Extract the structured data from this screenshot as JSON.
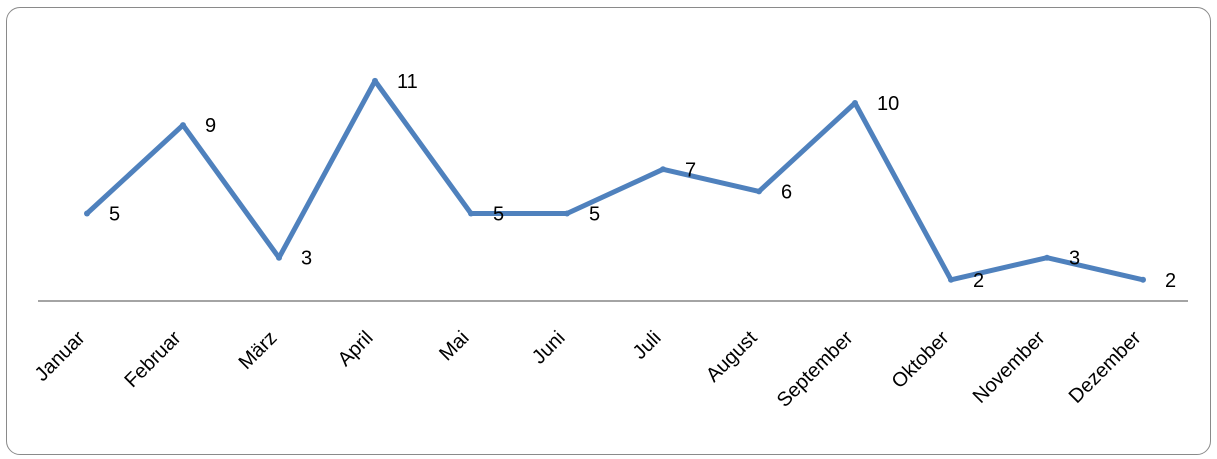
{
  "chart_data": {
    "type": "line",
    "categories": [
      "Januar",
      "Februar",
      "März",
      "April",
      "Mai",
      "Juni",
      "Juli",
      "August",
      "September",
      "Oktober",
      "November",
      "Dezember"
    ],
    "series": [
      {
        "values": [
          5,
          9,
          3,
          11,
          5,
          5,
          7,
          6,
          10,
          2,
          3,
          2
        ],
        "color": "#4f81bd"
      }
    ],
    "title": "",
    "xlabel": "",
    "ylabel": "",
    "ylim": [
      0,
      12
    ],
    "grid": false,
    "legend": "none",
    "data_labels": true,
    "axis_color": "#868686"
  }
}
